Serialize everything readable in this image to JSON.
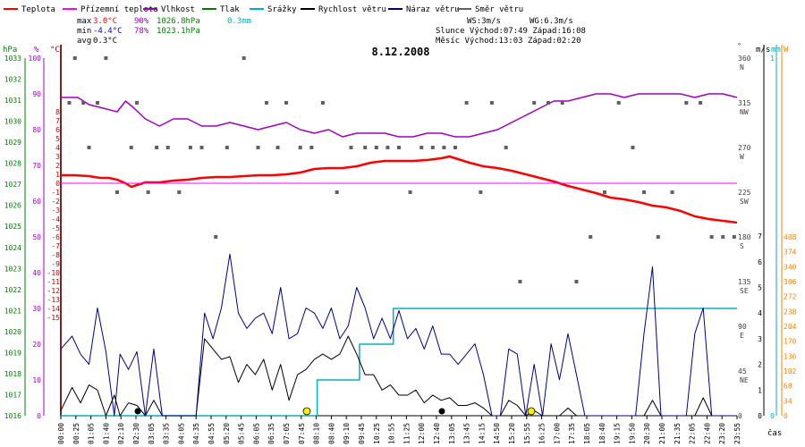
{
  "chart_data": {
    "type": "line",
    "title": "8.12.2008",
    "legend": [
      {
        "name": "Teplota",
        "color": "#ff0000"
      },
      {
        "name": "Přízemní teplota",
        "color": "#ff00ff"
      },
      {
        "name": "Vlhkost",
        "color": "#a000c0"
      },
      {
        "name": "Tlak",
        "color": "#008000"
      },
      {
        "name": "Srážky",
        "color": "#00b0c0"
      },
      {
        "name": "Rychlost větru",
        "color": "#000000"
      },
      {
        "name": "Náraz větru",
        "color": "#00008b"
      },
      {
        "name": "Směr větru",
        "color": "#606060"
      }
    ],
    "stats": {
      "max_label": "max",
      "max_temp": "3.0°C",
      "max_hum": "90%",
      "max_press": "1026.8hPa",
      "max_rain": "0.3mm",
      "min_label": "min",
      "min_temp": "-4.4°C",
      "min_hum": "78%",
      "min_press": "1023.1hPa",
      "avg_label": "avg",
      "avg_temp": "0.3°C"
    },
    "info": {
      "ws": "WS:3m/s",
      "wg": "WG:6.3m/s",
      "sun": "Slunce Východ:07:49 Západ:16:08",
      "moon": "Měsíc  Východ:13:03 Západ:02:20"
    },
    "x_label": "čas",
    "x_ticks": [
      "00:00",
      "00:25",
      "01:05",
      "01:40",
      "02:10",
      "02:30",
      "03:05",
      "03:35",
      "04:05",
      "04:35",
      "04:55",
      "05:20",
      "05:45",
      "06:05",
      "06:35",
      "07:05",
      "07:45",
      "08:10",
      "08:40",
      "09:10",
      "09:45",
      "10:25",
      "10:55",
      "11:25",
      "12:00",
      "12:40",
      "13:05",
      "13:45",
      "14:15",
      "14:50",
      "15:20",
      "15:55",
      "16:25",
      "17:00",
      "17:35",
      "18:05",
      "18:40",
      "19:15",
      "19:50",
      "20:30",
      "21:00",
      "21:35",
      "22:05",
      "22:40",
      "23:20",
      "23:55"
    ],
    "axes": {
      "pressure": {
        "unit": "hPa",
        "ticks": [
          "1033",
          "1032",
          "1031",
          "1030",
          "1029",
          "1028",
          "1027",
          "1026",
          "1025",
          "1024",
          "1023",
          "1022",
          "1021",
          "1020",
          "1019",
          "1018",
          "1017",
          "1016"
        ],
        "color": "#008000"
      },
      "humidity": {
        "unit": "%",
        "ticks": [
          "100",
          "90",
          "80",
          "70",
          "60",
          "50",
          "40",
          "30",
          "20",
          "10",
          "0"
        ],
        "color": "#a000c0"
      },
      "temperature": {
        "unit": "°C",
        "ticks": [
          "8",
          "7",
          "6",
          "5",
          "4",
          "3",
          "2",
          "1",
          "0",
          "-1",
          "-2",
          "-3",
          "-4",
          "-5",
          "-6",
          "-7",
          "-8",
          "-9",
          "-10",
          "-11",
          "-12",
          "-13",
          "-14",
          "-15"
        ],
        "color": "#c00000"
      },
      "direction": {
        "ticks": [
          "360",
          "315",
          "270",
          "225",
          "180",
          "135",
          "90",
          "45",
          "0"
        ],
        "labels": [
          "N",
          "NW",
          "W",
          "SW",
          "S",
          "SE",
          "E",
          "NE",
          ""
        ],
        "color": "#404040"
      },
      "wind_speed": {
        "unit": "m/s",
        "ticks": [
          "7",
          "6",
          "5",
          "4",
          "3",
          "2",
          "1",
          "0"
        ],
        "color": "#000000"
      },
      "rain": {
        "unit": "mm",
        "ticks": [
          "1",
          "0"
        ],
        "color": "#00b0c0"
      },
      "solar": {
        "unit": "W",
        "ticks": [
          "408",
          "374",
          "340",
          "306",
          "272",
          "238",
          "204",
          "170",
          "136",
          "102",
          "68",
          "34",
          "0"
        ],
        "color": "#ff8000"
      }
    },
    "series": [
      {
        "name": "Teplota",
        "unit": "°C",
        "color": "#ff0000",
        "x_hours": [
          0,
          0.5,
          1.0,
          1.4,
          1.7,
          2.0,
          2.3,
          2.5,
          2.7,
          3.0,
          3.5,
          4.0,
          4.5,
          5.0,
          5.5,
          6.0,
          6.5,
          7.0,
          7.5,
          8.0,
          8.5,
          9.0,
          9.5,
          10.0,
          10.5,
          11.0,
          11.5,
          12.0,
          12.5,
          13.0,
          13.5,
          13.8,
          14.0,
          14.5,
          15.0,
          15.5,
          16.0,
          16.5,
          17.0,
          17.5,
          18.0,
          18.5,
          19.0,
          19.5,
          20.0,
          20.5,
          21.0,
          21.5,
          22.0,
          22.5,
          23.0,
          23.5,
          24.0
        ],
        "values": [
          0.9,
          0.9,
          0.8,
          0.6,
          0.6,
          0.4,
          0.0,
          -0.4,
          -0.2,
          0.1,
          0.1,
          0.3,
          0.4,
          0.6,
          0.7,
          0.7,
          0.8,
          0.9,
          0.9,
          1.0,
          1.2,
          1.6,
          1.7,
          1.7,
          1.9,
          2.3,
          2.5,
          2.5,
          2.5,
          2.6,
          2.8,
          3.0,
          2.8,
          2.3,
          1.9,
          1.7,
          1.4,
          1.0,
          0.6,
          0.2,
          -0.3,
          -0.7,
          -1.1,
          -1.6,
          -1.8,
          -2.1,
          -2.5,
          -2.7,
          -3.1,
          -3.7,
          -4.0,
          -4.2,
          -4.4
        ]
      },
      {
        "name": "Přízemní teplota",
        "unit": "°C",
        "color": "#ff00ff",
        "x_hours": [
          0,
          24
        ],
        "values": [
          0,
          0
        ]
      },
      {
        "name": "Vlhkost",
        "unit": "%",
        "color": "#a000c0",
        "x_hours": [
          0,
          0.6,
          1.0,
          1.5,
          2.0,
          2.3,
          2.6,
          3.0,
          3.5,
          4.0,
          4.5,
          5.0,
          5.5,
          6.0,
          6.5,
          7.0,
          7.5,
          8.0,
          8.5,
          9.0,
          9.5,
          10.0,
          10.5,
          11.0,
          11.5,
          12.0,
          12.5,
          13.0,
          13.5,
          14.0,
          14.5,
          15.0,
          15.5,
          16.0,
          16.5,
          17.0,
          17.5,
          18.0,
          18.5,
          19.0,
          19.5,
          20.0,
          20.5,
          21.0,
          21.5,
          22.0,
          22.5,
          23.0,
          23.5,
          24.0
        ],
        "values": [
          89,
          89,
          87,
          86,
          85,
          88,
          86,
          83,
          81,
          83,
          83,
          81,
          81,
          82,
          81,
          80,
          81,
          82,
          80,
          79,
          80,
          78,
          79,
          79,
          79,
          78,
          78,
          79,
          79,
          78,
          78,
          79,
          80,
          82,
          84,
          86,
          88,
          88,
          89,
          90,
          90,
          89,
          90,
          90,
          90,
          90,
          89,
          90,
          90,
          89
        ]
      },
      {
        "name": "Srážky",
        "unit": "mm",
        "color": "#00b0c0",
        "x_hours": [
          0,
          9.1,
          9.1,
          10.6,
          10.6,
          11.8,
          11.8,
          24
        ],
        "values": [
          0,
          0,
          0.1,
          0.1,
          0.2,
          0.2,
          0.3,
          0.3
        ]
      },
      {
        "name": "Rychlost větru",
        "unit": "m/s",
        "color": "#000000",
        "x_hours": [
          0,
          0.4,
          0.7,
          1.0,
          1.3,
          1.6,
          1.9,
          2.1,
          2.4,
          2.7,
          3.0,
          3.3,
          3.6,
          3.9,
          4.2,
          4.5,
          4.8,
          5.1,
          5.4,
          5.7,
          6.0,
          6.3,
          6.6,
          6.9,
          7.2,
          7.5,
          7.8,
          8.1,
          8.4,
          8.7,
          9.0,
          9.3,
          9.6,
          9.9,
          10.2,
          10.5,
          10.8,
          11.1,
          11.4,
          11.7,
          12.0,
          12.3,
          12.6,
          12.9,
          13.2,
          13.5,
          13.8,
          14.1,
          14.4,
          14.7,
          15.0,
          15.3,
          15.6,
          15.9,
          16.2,
          16.5,
          16.8,
          17.1,
          17.4,
          17.7,
          18.0,
          18.3,
          18.6,
          18.9,
          19.2,
          19.5,
          19.8,
          20.1,
          20.4,
          20.7,
          21.0,
          21.3,
          21.6,
          21.9,
          22.2,
          22.5,
          22.8,
          23.1,
          23.4,
          23.7,
          24.0
        ],
        "values": [
          0.2,
          1.1,
          0.5,
          1.2,
          1.0,
          0,
          0.8,
          0,
          0.5,
          0.4,
          0,
          0.6,
          0,
          0,
          0,
          0,
          0,
          3.0,
          2.6,
          2.2,
          2.3,
          1.3,
          2.0,
          1.6,
          2.2,
          1.0,
          2.0,
          0.6,
          1.6,
          1.8,
          2.2,
          2.4,
          2.2,
          2.4,
          3.1,
          2.4,
          1.6,
          1.6,
          1.0,
          1.2,
          0.8,
          0.8,
          1.0,
          0.5,
          0.8,
          0.6,
          0.7,
          0.4,
          0.4,
          0.5,
          0.3,
          0,
          0,
          0.6,
          0.4,
          0,
          0.2,
          0,
          0,
          0,
          0.3,
          0,
          0,
          0,
          0,
          0,
          0,
          0,
          0,
          0,
          0.6,
          0,
          0,
          0,
          0,
          0,
          0.7,
          0,
          0,
          0,
          0
        ]
      },
      {
        "name": "Náraz větru",
        "unit": "m/s",
        "color": "#00008b",
        "x_hours": [
          0,
          0.4,
          0.7,
          1.0,
          1.3,
          1.6,
          1.9,
          2.1,
          2.4,
          2.7,
          3.0,
          3.3,
          3.6,
          3.9,
          4.2,
          4.5,
          4.8,
          5.1,
          5.4,
          5.7,
          6.0,
          6.3,
          6.6,
          6.9,
          7.2,
          7.5,
          7.8,
          8.1,
          8.4,
          8.7,
          9.0,
          9.3,
          9.6,
          9.9,
          10.2,
          10.5,
          10.8,
          11.1,
          11.4,
          11.7,
          12.0,
          12.3,
          12.6,
          12.9,
          13.2,
          13.5,
          13.8,
          14.1,
          14.4,
          14.7,
          15.0,
          15.3,
          15.6,
          15.9,
          16.2,
          16.5,
          16.8,
          17.1,
          17.4,
          17.7,
          18.0,
          18.3,
          18.6,
          18.9,
          19.2,
          19.5,
          19.8,
          20.1,
          20.4,
          20.7,
          21.0,
          21.3,
          21.6,
          21.9,
          22.2,
          22.5,
          22.8,
          23.1,
          23.4,
          23.7,
          24.0
        ],
        "values": [
          2.6,
          3.1,
          2.4,
          2.0,
          4.2,
          2.5,
          0,
          2.4,
          1.8,
          2.5,
          0,
          2.6,
          0,
          0,
          0,
          0,
          0,
          4.0,
          3.0,
          4.2,
          6.3,
          4.0,
          3.4,
          3.8,
          4.0,
          3.2,
          5.0,
          3.0,
          3.2,
          4.2,
          4.0,
          3.4,
          4.2,
          3.0,
          3.5,
          5.0,
          4.2,
          3.0,
          3.8,
          3.0,
          4.1,
          3.0,
          3.4,
          2.6,
          3.5,
          2.4,
          2.4,
          2.0,
          2.4,
          2.8,
          1.6,
          0,
          0,
          2.6,
          2.4,
          0,
          2.0,
          0,
          2.8,
          1.4,
          3.2,
          1.6,
          0,
          0,
          0,
          0,
          0,
          0,
          0,
          3.2,
          5.8,
          0,
          0,
          0,
          0,
          3.2,
          4.2,
          0,
          0,
          0,
          0
        ]
      },
      {
        "name": "Směr větru",
        "unit": "°",
        "color": "#606060",
        "type": "scatter",
        "x_hours": [
          0.3,
          0.5,
          0.8,
          1.0,
          1.3,
          1.6,
          2.0,
          2.5,
          2.7,
          3.1,
          3.4,
          3.8,
          4.2,
          4.6,
          5.0,
          5.5,
          5.9,
          6.5,
          7.0,
          7.3,
          7.7,
          8.0,
          8.5,
          8.9,
          9.3,
          9.8,
          10.3,
          10.8,
          11.2,
          11.6,
          12.0,
          12.4,
          12.8,
          13.2,
          13.6,
          14.0,
          14.4,
          14.9,
          15.3,
          15.8,
          16.3,
          16.8,
          17.3,
          17.8,
          18.3,
          18.8,
          19.3,
          19.8,
          20.3,
          20.7,
          21.2,
          21.7,
          22.2,
          22.7,
          23.1,
          23.5,
          23.9
        ],
        "values": [
          315,
          360,
          315,
          270,
          315,
          360,
          225,
          270,
          315,
          225,
          270,
          270,
          225,
          270,
          270,
          180,
          270,
          360,
          270,
          315,
          270,
          315,
          270,
          270,
          315,
          225,
          270,
          270,
          270,
          270,
          270,
          225,
          270,
          270,
          270,
          270,
          315,
          225,
          315,
          270,
          135,
          315,
          315,
          315,
          135,
          180,
          225,
          315,
          270,
          225,
          180,
          225,
          315,
          315,
          180,
          180,
          180
        ]
      }
    ]
  }
}
